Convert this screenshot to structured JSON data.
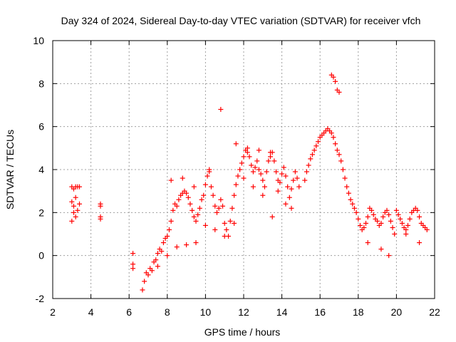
{
  "chart_data": {
    "type": "scatter",
    "title": "Day 324 of 2024, Sidereal Day-to-day VTEC variation (SDTVAR) for receiver vfch",
    "xlabel": "GPS time / hours",
    "ylabel": "SDTVAR / TECUs",
    "xlim": [
      2,
      22
    ],
    "ylim": [
      -2,
      10
    ],
    "xticks": [
      2,
      4,
      6,
      8,
      10,
      12,
      14,
      16,
      18,
      20,
      22
    ],
    "yticks": [
      -2,
      0,
      2,
      4,
      6,
      8,
      10
    ],
    "grid": true,
    "marker": "+",
    "color": "#ff0000",
    "series": [
      {
        "name": "SDTVAR",
        "x": [
          3.0,
          3.1,
          3.2,
          3.3,
          3.4,
          3.0,
          3.1,
          3.2,
          3.3,
          3.4,
          3.0,
          3.1,
          3.2,
          4.5,
          4.5,
          4.5,
          4.5,
          6.2,
          6.2,
          6.2,
          6.7,
          6.8,
          6.9,
          7.0,
          7.1,
          7.2,
          7.3,
          7.4,
          7.5,
          7.6,
          7.7,
          7.8,
          7.9,
          8.0,
          8.1,
          8.2,
          8.3,
          8.4,
          8.5,
          8.6,
          8.7,
          8.8,
          8.9,
          9.0,
          9.1,
          9.2,
          9.3,
          9.4,
          9.5,
          9.6,
          9.7,
          9.8,
          9.9,
          10.0,
          10.1,
          10.2,
          10.3,
          10.4,
          10.5,
          10.6,
          10.7,
          10.8,
          10.9,
          11.0,
          11.1,
          11.2,
          11.3,
          11.4,
          11.5,
          11.6,
          11.7,
          11.8,
          11.9,
          12.0,
          12.1,
          12.2,
          12.3,
          12.4,
          12.5,
          12.6,
          12.7,
          12.8,
          12.9,
          13.0,
          13.1,
          13.2,
          13.3,
          13.4,
          13.5,
          13.6,
          13.7,
          13.8,
          13.9,
          14.0,
          14.1,
          14.2,
          14.3,
          14.4,
          14.5,
          14.6,
          14.7,
          14.8,
          14.9,
          15.2,
          15.3,
          15.4,
          15.5,
          15.6,
          15.7,
          15.8,
          15.9,
          16.0,
          16.1,
          16.2,
          16.3,
          16.4,
          16.5,
          16.6,
          16.7,
          16.8,
          16.9,
          16.6,
          16.7,
          16.8,
          16.9,
          17.0,
          17.0,
          17.1,
          17.2,
          17.3,
          17.4,
          17.5,
          17.6,
          17.7,
          17.8,
          17.9,
          18.0,
          18.1,
          18.2,
          18.3,
          18.4,
          18.5,
          18.6,
          18.7,
          18.8,
          18.9,
          19.0,
          19.1,
          19.2,
          19.3,
          19.4,
          19.5,
          19.6,
          19.7,
          19.8,
          19.9,
          20.0,
          20.1,
          20.2,
          20.3,
          20.4,
          20.5,
          20.6,
          20.7,
          20.8,
          20.9,
          21.0,
          21.1,
          21.2,
          21.3,
          21.4,
          21.5,
          21.6,
          7.5,
          8.0,
          8.5,
          9.0,
          9.5,
          10.0,
          10.5,
          11.0,
          11.5,
          12.0,
          12.5,
          13.0,
          8.2,
          8.8,
          9.4,
          10.2,
          10.8,
          11.6,
          12.2,
          12.8,
          13.4,
          13.5,
          13.8,
          14.2,
          14.5,
          18.5,
          19.2,
          19.6,
          20.5,
          21.2
        ],
        "y": [
          1.6,
          2.3,
          2.7,
          2.1,
          2.4,
          3.2,
          3.1,
          3.2,
          3.2,
          3.2,
          2.5,
          2.0,
          1.8,
          1.7,
          1.8,
          2.3,
          2.4,
          0.1,
          -0.4,
          -0.6,
          -1.6,
          -1.2,
          -0.8,
          -0.9,
          -0.6,
          -0.7,
          -0.3,
          -0.2,
          0.1,
          0.3,
          0.2,
          0.6,
          0.8,
          0.9,
          1.2,
          1.6,
          2.1,
          2.4,
          2.3,
          2.6,
          2.8,
          2.9,
          3.0,
          2.9,
          2.7,
          2.4,
          2.1,
          1.8,
          1.6,
          1.9,
          2.2,
          2.6,
          2.8,
          3.3,
          3.7,
          3.9,
          3.2,
          2.8,
          2.3,
          2.0,
          2.2,
          2.6,
          2.3,
          1.5,
          1.2,
          0.9,
          1.6,
          2.2,
          2.8,
          3.3,
          3.7,
          4.0,
          4.3,
          4.6,
          4.9,
          4.8,
          4.6,
          4.2,
          3.9,
          4.1,
          4.4,
          4.0,
          3.8,
          3.5,
          3.2,
          3.9,
          4.4,
          4.6,
          4.8,
          4.4,
          3.9,
          3.5,
          3.4,
          3.8,
          4.1,
          3.7,
          3.2,
          2.7,
          3.1,
          3.5,
          3.9,
          3.6,
          3.2,
          3.5,
          3.9,
          4.2,
          4.5,
          4.7,
          4.9,
          5.1,
          5.3,
          5.5,
          5.6,
          5.7,
          5.8,
          5.9,
          5.8,
          5.7,
          5.5,
          5.2,
          4.9,
          8.4,
          8.3,
          8.1,
          7.7,
          7.6,
          4.7,
          4.4,
          4.0,
          3.6,
          3.2,
          2.9,
          2.6,
          2.4,
          2.2,
          2.0,
          1.7,
          1.4,
          1.2,
          1.3,
          1.5,
          1.8,
          2.2,
          2.1,
          1.9,
          1.7,
          1.6,
          1.4,
          1.5,
          1.8,
          2.0,
          2.1,
          1.9,
          1.6,
          1.3,
          1.0,
          2.1,
          1.9,
          1.7,
          1.5,
          1.3,
          1.2,
          1.4,
          1.7,
          2.0,
          2.1,
          2.2,
          2.1,
          1.8,
          1.5,
          1.4,
          1.3,
          1.2,
          -0.5,
          0.0,
          0.4,
          0.5,
          0.6,
          1.4,
          1.2,
          0.9,
          1.5,
          3.6,
          3.2,
          2.8,
          3.5,
          3.6,
          3.2,
          4.0,
          6.8,
          5.2,
          5.0,
          4.9,
          4.8,
          1.8,
          3.0,
          2.4,
          2.2,
          0.6,
          0.3,
          0.0,
          1.0,
          0.6
        ]
      }
    ]
  }
}
